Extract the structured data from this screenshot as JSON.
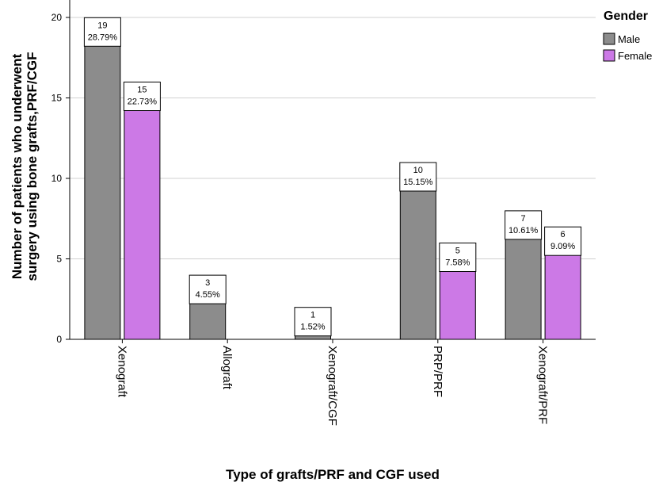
{
  "chart_data": {
    "type": "bar",
    "categories": [
      "Xenograft",
      "Allograft",
      "Xenograft/CGF",
      "PRP/PRF",
      "Xenograft/PRF"
    ],
    "series": [
      {
        "name": "Male",
        "color": "#8c8c8c",
        "values": [
          19,
          3,
          1,
          10,
          7
        ],
        "labels": [
          "28.79%",
          "4.55%",
          "1.52%",
          "15.15%",
          "10.61%"
        ]
      },
      {
        "name": "Female",
        "color": "#cc79e6",
        "values": [
          15,
          0,
          0,
          5,
          6
        ],
        "labels": [
          "22.73%",
          "",
          "",
          "7.58%",
          "9.09%"
        ]
      }
    ],
    "xlabel": "Type of grafts/PRF and CGF used",
    "ylabel": "Number of patients who underwent surgery using bone grafts,PRF/CGF",
    "ylabel_lines": [
      "Number of patients who underwent",
      "surgery using bone grafts,PRF/CGF"
    ],
    "ylim": [
      0,
      20
    ],
    "yticks": [
      0,
      5,
      10,
      15,
      20
    ],
    "grid": true,
    "legend": {
      "title": "Gender",
      "position": "right"
    }
  }
}
